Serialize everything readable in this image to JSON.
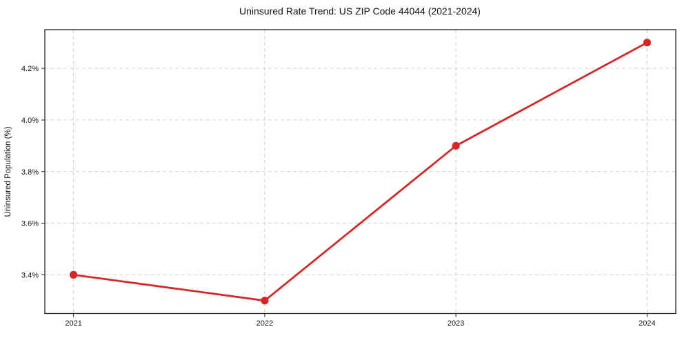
{
  "chart_data": {
    "type": "line",
    "title": "Uninsured Rate Trend: US ZIP Code 44044 (2021-2024)",
    "xlabel": "",
    "ylabel": "Uninsured Population (%)",
    "x": [
      2021,
      2022,
      2023,
      2024
    ],
    "x_tick_labels": [
      "2021",
      "2022",
      "2023",
      "2024"
    ],
    "values": [
      3.4,
      3.3,
      3.9,
      4.3
    ],
    "y_ticks": [
      3.4,
      3.6,
      3.8,
      4.0,
      4.2
    ],
    "y_tick_labels": [
      "3.4%",
      "3.6%",
      "3.8%",
      "4.0%",
      "4.2%"
    ],
    "xlim": [
      2020.85,
      2024.15
    ],
    "ylim": [
      3.25,
      4.35
    ],
    "grid": true,
    "grid_style": "dashed",
    "legend": "none",
    "marker": "circle",
    "colors": {
      "line": "#d62728",
      "marker": "#d62728",
      "grid": "#cccccc",
      "frame": "#262626",
      "text": "#111111",
      "background": "#ffffff"
    }
  }
}
